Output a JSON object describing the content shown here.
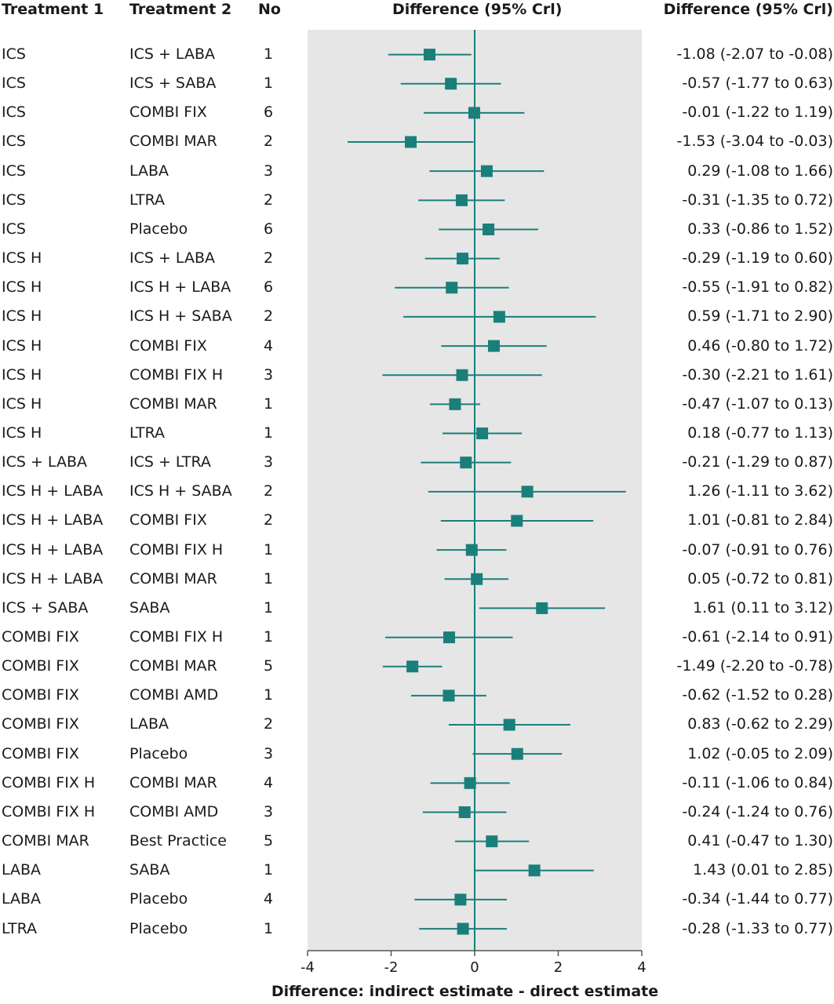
{
  "headers": {
    "treatment1": "Treatment 1",
    "treatment2": "Treatment 2",
    "no": "No",
    "plot": "Difference (95% Crl)",
    "ci": "Difference (95% Crl)"
  },
  "chart_data": {
    "type": "forest",
    "xlabel": "Difference: indirect estimate - direct estimate",
    "xlim": [
      -4,
      4
    ],
    "xticks": [
      -4,
      -2,
      0,
      2,
      4
    ],
    "reference_line": 0,
    "colors": {
      "marker": "#1a7f7a",
      "panel": "#e6e6e6",
      "axis": "#555555"
    },
    "rows": [
      {
        "t1": "ICS",
        "t2": "ICS + LABA",
        "n": "1",
        "est": -1.08,
        "lo": -2.07,
        "hi": -0.08,
        "ci_text": "-1.08 (-2.07 to -0.08)"
      },
      {
        "t1": "ICS",
        "t2": "ICS + SABA",
        "n": "1",
        "est": -0.57,
        "lo": -1.77,
        "hi": 0.63,
        "ci_text": "-0.57 (-1.77 to 0.63)"
      },
      {
        "t1": "ICS",
        "t2": "COMBI FIX",
        "n": "6",
        "est": -0.01,
        "lo": -1.22,
        "hi": 1.19,
        "ci_text": "-0.01 (-1.22 to 1.19)"
      },
      {
        "t1": "ICS",
        "t2": "COMBI MAR",
        "n": "2",
        "est": -1.53,
        "lo": -3.04,
        "hi": -0.03,
        "ci_text": "-1.53 (-3.04 to -0.03)"
      },
      {
        "t1": "ICS",
        "t2": "LABA",
        "n": "3",
        "est": 0.29,
        "lo": -1.08,
        "hi": 1.66,
        "ci_text": "0.29 (-1.08 to 1.66)"
      },
      {
        "t1": "ICS",
        "t2": "LTRA",
        "n": "2",
        "est": -0.31,
        "lo": -1.35,
        "hi": 0.72,
        "ci_text": "-0.31 (-1.35 to 0.72)"
      },
      {
        "t1": "ICS",
        "t2": "Placebo",
        "n": "6",
        "est": 0.33,
        "lo": -0.86,
        "hi": 1.52,
        "ci_text": "0.33 (-0.86 to 1.52)"
      },
      {
        "t1": "ICS H",
        "t2": "ICS + LABA",
        "n": "2",
        "est": -0.29,
        "lo": -1.19,
        "hi": 0.6,
        "ci_text": "-0.29 (-1.19 to 0.60)"
      },
      {
        "t1": "ICS H",
        "t2": "ICS H + LABA",
        "n": "6",
        "est": -0.55,
        "lo": -1.91,
        "hi": 0.82,
        "ci_text": "-0.55 (-1.91 to 0.82)"
      },
      {
        "t1": "ICS H",
        "t2": "ICS H + SABA",
        "n": "2",
        "est": 0.59,
        "lo": -1.71,
        "hi": 2.9,
        "ci_text": "0.59 (-1.71 to 2.90)"
      },
      {
        "t1": "ICS H",
        "t2": "COMBI FIX",
        "n": "4",
        "est": 0.46,
        "lo": -0.8,
        "hi": 1.72,
        "ci_text": "0.46 (-0.80 to 1.72)"
      },
      {
        "t1": "ICS H",
        "t2": "COMBI FIX H",
        "n": "3",
        "est": -0.3,
        "lo": -2.21,
        "hi": 1.61,
        "ci_text": "-0.30 (-2.21 to 1.61)"
      },
      {
        "t1": "ICS H",
        "t2": "COMBI MAR",
        "n": "1",
        "est": -0.47,
        "lo": -1.07,
        "hi": 0.13,
        "ci_text": "-0.47 (-1.07 to 0.13)"
      },
      {
        "t1": "ICS H",
        "t2": "LTRA",
        "n": "1",
        "est": 0.18,
        "lo": -0.77,
        "hi": 1.13,
        "ci_text": "0.18 (-0.77 to 1.13)"
      },
      {
        "t1": "ICS + LABA",
        "t2": "ICS + LTRA",
        "n": "3",
        "est": -0.21,
        "lo": -1.29,
        "hi": 0.87,
        "ci_text": "-0.21 (-1.29 to 0.87)"
      },
      {
        "t1": "ICS H + LABA",
        "t2": "ICS H + SABA",
        "n": "2",
        "est": 1.26,
        "lo": -1.11,
        "hi": 3.62,
        "ci_text": "1.26 (-1.11 to 3.62)"
      },
      {
        "t1": "ICS H + LABA",
        "t2": "COMBI FIX",
        "n": "2",
        "est": 1.01,
        "lo": -0.81,
        "hi": 2.84,
        "ci_text": "1.01 (-0.81 to 2.84)"
      },
      {
        "t1": "ICS H + LABA",
        "t2": "COMBI FIX H",
        "n": "1",
        "est": -0.07,
        "lo": -0.91,
        "hi": 0.76,
        "ci_text": "-0.07 (-0.91 to 0.76)"
      },
      {
        "t1": "ICS H + LABA",
        "t2": "COMBI MAR",
        "n": "1",
        "est": 0.05,
        "lo": -0.72,
        "hi": 0.81,
        "ci_text": "0.05 (-0.72 to 0.81)"
      },
      {
        "t1": "ICS + SABA",
        "t2": "SABA",
        "n": "1",
        "est": 1.61,
        "lo": 0.11,
        "hi": 3.12,
        "ci_text": "1.61 (0.11 to 3.12)"
      },
      {
        "t1": "COMBI FIX",
        "t2": "COMBI FIX H",
        "n": "1",
        "est": -0.61,
        "lo": -2.14,
        "hi": 0.91,
        "ci_text": "-0.61 (-2.14 to 0.91)"
      },
      {
        "t1": "COMBI FIX",
        "t2": "COMBI MAR",
        "n": "5",
        "est": -1.49,
        "lo": -2.2,
        "hi": -0.78,
        "ci_text": "-1.49 (-2.20 to -0.78)"
      },
      {
        "t1": "COMBI FIX",
        "t2": "COMBI AMD",
        "n": "1",
        "est": -0.62,
        "lo": -1.52,
        "hi": 0.28,
        "ci_text": "-0.62 (-1.52 to 0.28)"
      },
      {
        "t1": "COMBI FIX",
        "t2": "LABA",
        "n": "2",
        "est": 0.83,
        "lo": -0.62,
        "hi": 2.29,
        "ci_text": "0.83 (-0.62 to 2.29)"
      },
      {
        "t1": "COMBI FIX",
        "t2": "Placebo",
        "n": "3",
        "est": 1.02,
        "lo": -0.05,
        "hi": 2.09,
        "ci_text": "1.02 (-0.05 to 2.09)"
      },
      {
        "t1": "COMBI FIX H",
        "t2": "COMBI MAR",
        "n": "4",
        "est": -0.11,
        "lo": -1.06,
        "hi": 0.84,
        "ci_text": "-0.11 (-1.06 to 0.84)"
      },
      {
        "t1": "COMBI FIX H",
        "t2": "COMBI AMD",
        "n": "3",
        "est": -0.24,
        "lo": -1.24,
        "hi": 0.76,
        "ci_text": "-0.24 (-1.24 to 0.76)"
      },
      {
        "t1": "COMBI MAR",
        "t2": "Best Practice",
        "n": "5",
        "est": 0.41,
        "lo": -0.47,
        "hi": 1.3,
        "ci_text": "0.41 (-0.47 to 1.30)"
      },
      {
        "t1": "LABA",
        "t2": "SABA",
        "n": "1",
        "est": 1.43,
        "lo": 0.01,
        "hi": 2.85,
        "ci_text": "1.43 (0.01 to 2.85)"
      },
      {
        "t1": "LABA",
        "t2": "Placebo",
        "n": "4",
        "est": -0.34,
        "lo": -1.44,
        "hi": 0.77,
        "ci_text": "-0.34 (-1.44 to 0.77)"
      },
      {
        "t1": "LTRA",
        "t2": "Placebo",
        "n": "1",
        "est": -0.28,
        "lo": -1.33,
        "hi": 0.77,
        "ci_text": "-0.28 (-1.33 to 0.77)"
      }
    ]
  }
}
